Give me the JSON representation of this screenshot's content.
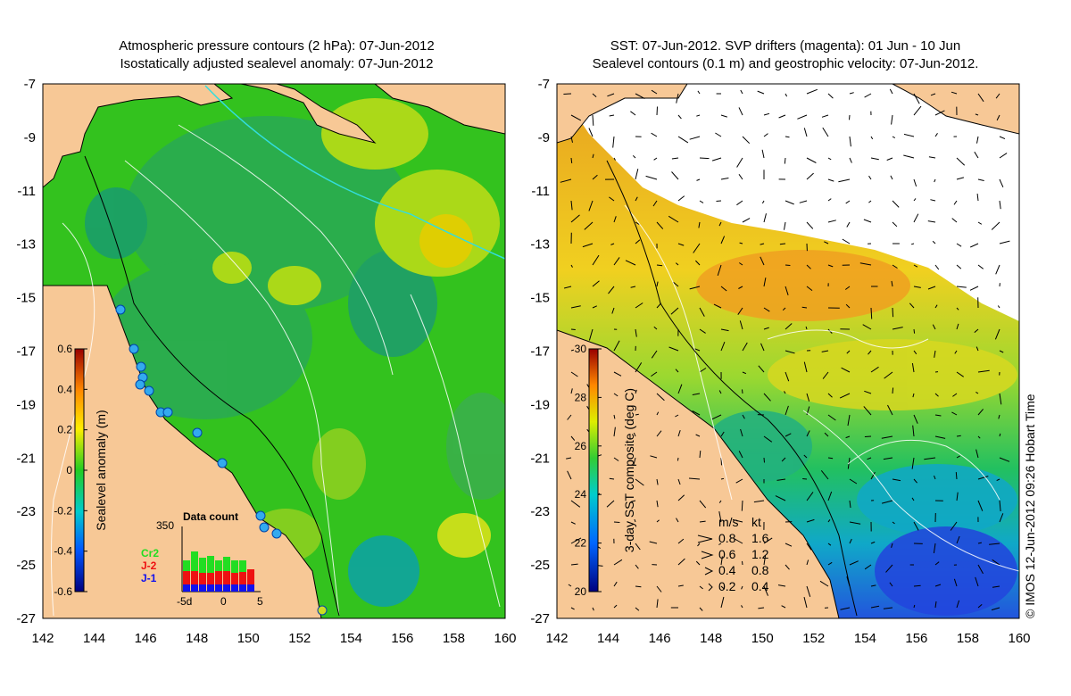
{
  "left_panel": {
    "title_line1": "Atmospheric pressure contours (2 hPa): 07-Jun-2012",
    "title_line2": "Isostatically adjusted sealevel anomaly: 07-Jun-2012",
    "colorbar": {
      "label": "Sealevel anomaly (m)",
      "ticks": [
        "0.6",
        "0.4",
        "0.2",
        "0",
        "-0.2",
        "-0.4",
        "-0.6"
      ],
      "range": [
        -0.6,
        0.6
      ]
    },
    "inset": {
      "title": "Data count",
      "ymax_label": "350",
      "series": [
        {
          "name": "Cr2",
          "color": "#22dd22"
        },
        {
          "name": "J-2",
          "color": "#ee1111"
        },
        {
          "name": "J-1",
          "color": "#1111ee"
        }
      ],
      "x_ticks": [
        "-5d",
        "0",
        "5"
      ]
    }
  },
  "right_panel": {
    "title_line1": "SST: 07-Jun-2012. SVP drifters (magenta): 01 Jun - 10 Jun",
    "title_line2": "Sealevel contours (0.1 m) and geostrophic velocity: 07-Jun-2012.",
    "colorbar": {
      "label": "3-day SST composite (deg C)",
      "ticks": [
        "30",
        "28",
        "26",
        "24",
        "22",
        "20"
      ],
      "range": [
        20,
        30
      ]
    },
    "velocity_legend": {
      "header_ms": "m/s",
      "header_kt": "kt",
      "rows": [
        {
          "ms": "0.8",
          "kt": "1.6"
        },
        {
          "ms": "0.6",
          "kt": "1.2"
        },
        {
          "ms": "0.4",
          "kt": "0.8"
        },
        {
          "ms": "0.2",
          "kt": "0.4"
        }
      ]
    }
  },
  "axes": {
    "lat_ticks": [
      "-7",
      "-9",
      "-11",
      "-13",
      "-15",
      "-17",
      "-19",
      "-21",
      "-23",
      "-25",
      "-27"
    ],
    "lon_ticks": [
      "142",
      "144",
      "146",
      "148",
      "150",
      "152",
      "154",
      "156",
      "158",
      "160"
    ],
    "lon_range": [
      142,
      160
    ],
    "lat_range": [
      -27,
      -7
    ]
  },
  "credit": "© IMOS 12-Jun-2012 09:26 Hobart Time",
  "colors": {
    "land": "#f7c896",
    "sla_field": "#44cc33",
    "sst_cold": "#1111aa",
    "sst_warm": "#dd8811"
  }
}
